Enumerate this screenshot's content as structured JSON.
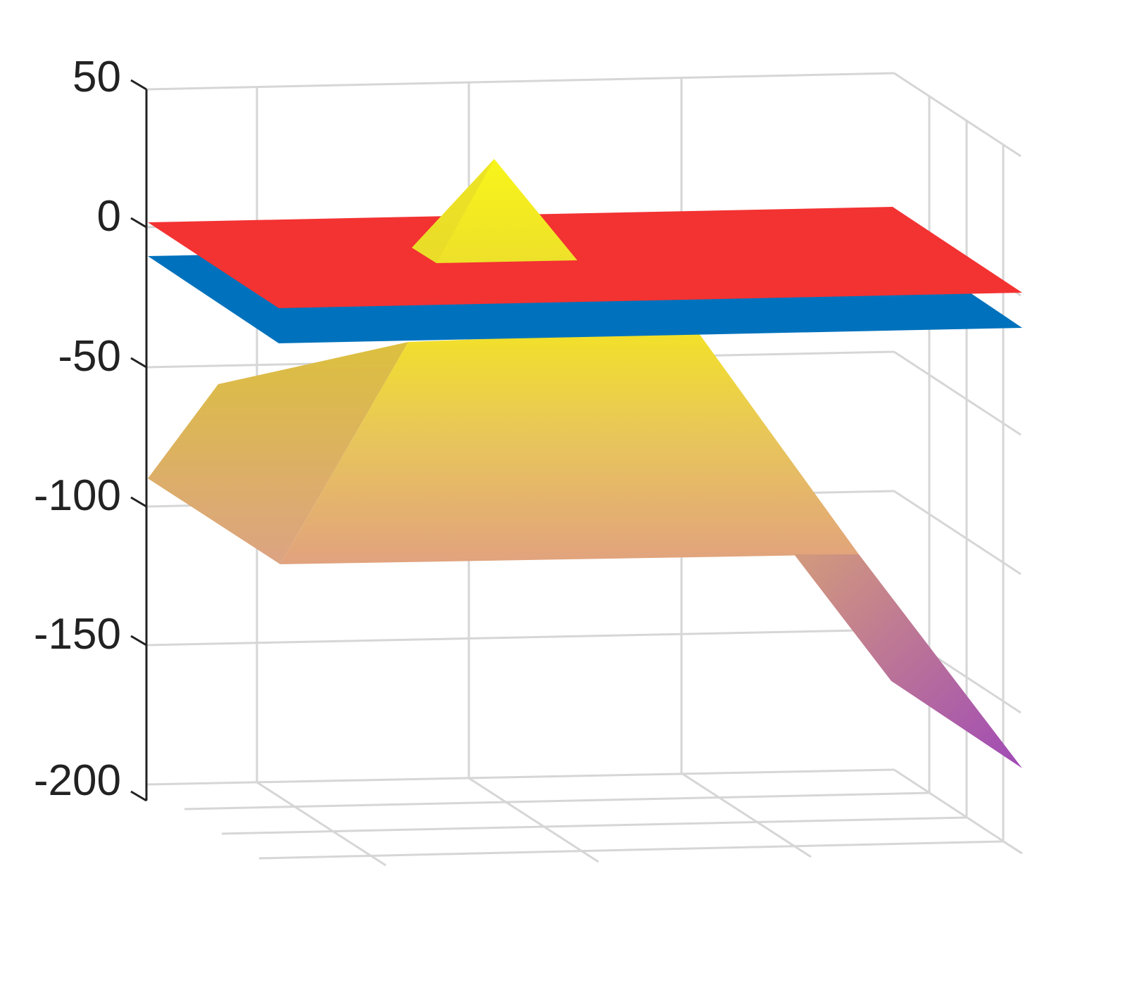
{
  "chart_data": {
    "type": "surface3d",
    "title": "",
    "xlabel": "",
    "ylabel": "",
    "zlabel": "",
    "zlim": [
      -200,
      50
    ],
    "z_ticks": [
      50,
      0,
      -50,
      -100,
      -150,
      -200
    ],
    "z_tick_labels": [
      "50",
      "0",
      "-50",
      "-100",
      "-150",
      "-200"
    ],
    "grid": true,
    "surfaces": [
      {
        "kind": "plane",
        "z": 0,
        "color": "#f33232"
      },
      {
        "kind": "plane",
        "z": -12,
        "color": "#0072bd"
      },
      {
        "kind": "pyramid",
        "z_peak": 23,
        "z_base": -120,
        "z_min": -200,
        "colormap": [
          "#f0e82a",
          "#e4a27a",
          "#a24fb1"
        ]
      }
    ]
  }
}
